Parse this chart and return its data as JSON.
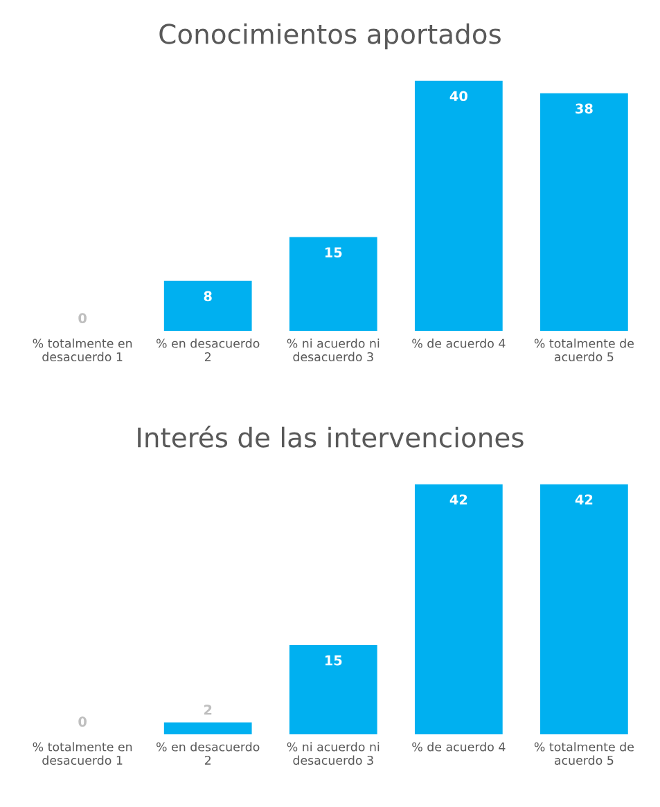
{
  "chart_data": [
    {
      "type": "bar",
      "title": "Conocimientos aportados",
      "categories": [
        "% totalmente en\ndesacuerdo 1",
        "% en desacuerdo\n2",
        "% ni acuerdo ni\ndesacuerdo 3",
        "% de acuerdo 4",
        "% totalmente de\nacuerdo 5"
      ],
      "values": [
        0,
        8,
        15,
        40,
        38
      ],
      "color": "#00b0f0",
      "data_labels": true,
      "grid": false,
      "legend": false
    },
    {
      "type": "bar",
      "title": "Interés de las intervenciones",
      "categories": [
        "% totalmente en\ndesacuerdo 1",
        "% en desacuerdo\n2",
        "% ni acuerdo ni\ndesacuerdo 3",
        "% de acuerdo 4",
        "% totalmente de\nacuerdo 5"
      ],
      "values": [
        0,
        2,
        15,
        42,
        42
      ],
      "color": "#00b0f0",
      "data_labels": true,
      "grid": false,
      "legend": false
    }
  ]
}
